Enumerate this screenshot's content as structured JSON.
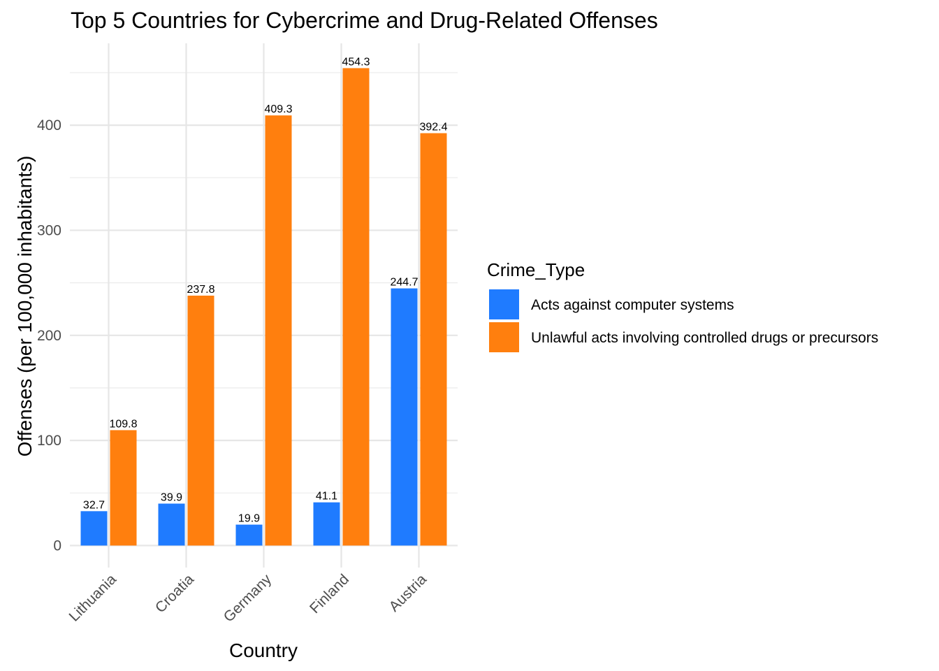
{
  "chart_data": {
    "type": "bar",
    "title": "Top 5 Countries for Cybercrime and Drug-Related Offenses",
    "xlabel": "Country",
    "ylabel": "Offenses (per 100,000 inhabitants)",
    "categories": [
      "Lithuania",
      "Croatia",
      "Germany",
      "Finland",
      "Austria"
    ],
    "series": [
      {
        "name": "Acts against computer systems",
        "color": "#1f7bff",
        "values": [
          32.7,
          39.9,
          19.9,
          41.1,
          244.7
        ]
      },
      {
        "name": "Unlawful acts involving controlled drugs or precursors",
        "color": "#ff7f0e",
        "values": [
          109.8,
          237.8,
          409.3,
          454.3,
          392.4
        ]
      }
    ],
    "ylim": [
      0,
      475
    ],
    "y_ticks": [
      0,
      100,
      200,
      300,
      400
    ],
    "grid": true,
    "legend": {
      "title": "Crime_Type",
      "position": "right"
    }
  }
}
